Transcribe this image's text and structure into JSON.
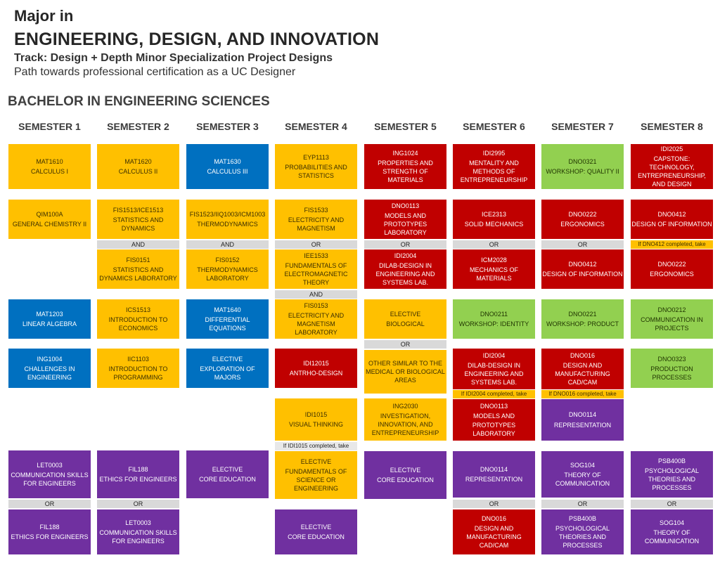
{
  "header": {
    "major": "Major in",
    "program": "ENGINEERING, DESIGN, AND INNOVATION",
    "track": "Track:  Design +  Depth Minor Specialization Project Designs",
    "path": "Path towards professional certification as a UC Designer",
    "degree": "BACHELOR IN ENGINEERING SCIENCES"
  },
  "semesters": [
    "SEMESTER 1",
    "SEMESTER 2",
    "SEMESTER 3",
    "SEMESTER 4",
    "SEMESTER 5",
    "SEMESTER 6",
    "SEMESTER 7",
    "SEMESTER 8"
  ],
  "legend_colors": {
    "science": "#FFC000",
    "design": "#C00000",
    "workshop": "#92D050",
    "math": "#0070C0",
    "general": "#7030A0"
  },
  "connectors": {
    "or": "OR",
    "and": "AND"
  },
  "notes": {
    "n1": "If DNO412 completed, take",
    "n2": "If IDI2004 completed, take",
    "n3": "If DNO016 completed, take",
    "n4": "If IDI1015 completed, take"
  },
  "courses": {
    "s1a": {
      "code": "MAT1610",
      "title": "CALCULUS I"
    },
    "s1b": {
      "code": "QIM100A",
      "title": "GENERAL CHEMISTRY II"
    },
    "s1c": {
      "code": "MAT1203",
      "title": "LINEAR ALGEBRA"
    },
    "s1d": {
      "code": "ING1004",
      "title": "CHALLENGES IN ENGINEERING"
    },
    "s1e": {
      "code": "LET0003",
      "title": "COMMUNICATION SKILLS FOR ENGINEERS"
    },
    "s1f": {
      "code": "FIL188",
      "title": "ETHICS FOR ENGINEERS"
    },
    "s2a": {
      "code": "MAT1620",
      "title": "CALCULUS II"
    },
    "s2b": {
      "code": "FIS1513/ICE1513",
      "title": "STATISTICS AND DYNAMICS"
    },
    "s2c": {
      "code": "FIS0151",
      "title": "STATISTICS AND DYNAMICS LABORATORY"
    },
    "s2d": {
      "code": "ICS1513",
      "title": "INTRODUCTION TO ECONOMICS"
    },
    "s2e": {
      "code": "IIC1103",
      "title": "INTRODUCTION TO PROGRAMMING"
    },
    "s2f": {
      "code": "FIL188",
      "title": "ETHICS FOR ENGINEERS"
    },
    "s2g": {
      "code": "LET0003",
      "title": "COMMUNICATION SKILLS FOR ENGINEERS"
    },
    "s3a": {
      "code": "MAT1630",
      "title": "CALCULUS III"
    },
    "s3b": {
      "code": "FIS1523/IIQ1003/ICM1003",
      "title": "THERMODYNAMICS"
    },
    "s3c": {
      "code": "FIS0152",
      "title": "THERMODYNAMICS LABORATORY"
    },
    "s3d": {
      "code": "MAT1640",
      "title": "DIFFERENTIAL EQUATIONS"
    },
    "s3e": {
      "code": "ELECTIVE",
      "title": "EXPLORATION OF MAJORS"
    },
    "s3f": {
      "code": "ELECTIVE",
      "title": "CORE EDUCATION"
    },
    "s4a": {
      "code": "EYP1113",
      "title": "PROBABILITIES AND STATISTICS"
    },
    "s4b": {
      "code": "FIS1533",
      "title": "ELECTRICITY AND MAGNETISM"
    },
    "s4c": {
      "code": "IEE1533",
      "title": "FUNDAMENTALS OF ELECTROMAGNETIC THEORY"
    },
    "s4d": {
      "code": "FIS0153",
      "title": "ELECTRICITY AND MAGNETISM LABORATORY"
    },
    "s4e": {
      "code": "IDI12015",
      "title": "ANTRHO-DESIGN"
    },
    "s4f": {
      "code": "IDI1015",
      "title": "VISUAL THINKING"
    },
    "s4g": {
      "code": "ELECTIVE",
      "title": "FUNDAMENTALS OF SCIENCE OR ENGINEERING"
    },
    "s4h": {
      "code": "ELECTIVE",
      "title": "CORE EDUCATION"
    },
    "s5a": {
      "code": "ING1024",
      "title": "PROPERTIES AND STRENGTH OF MATERIALS"
    },
    "s5b": {
      "code": "DNO0113",
      "title": "MODELS AND PROTOTYPES LABORATORY"
    },
    "s5c": {
      "code": "IDI2004",
      "title": "DILAB-DESIGN IN ENGINEERING AND SYSTEMS LAB."
    },
    "s5d": {
      "code": "ELECTIVE",
      "title": "BIOLOGICAL"
    },
    "s5e": {
      "code": "",
      "title": "OTHER SIMILAR TO THE MEDICAL OR BIOLOGICAL AREAS"
    },
    "s5f": {
      "code": "ING2030",
      "title": "INVESTIGATION, INNOVATION, AND ENTREPRENEURSHIP"
    },
    "s5g": {
      "code": "ELECTIVE",
      "title": "CORE EDUCATION"
    },
    "s6a": {
      "code": "IDI2995",
      "title": "MENTALITY AND METHODS OF ENTREPRENEURSHIP"
    },
    "s6b": {
      "code": "ICE2313",
      "title": "SOLID MECHANICS"
    },
    "s6c": {
      "code": "ICM2028",
      "title": "MECHANICS OF MATERIALS"
    },
    "s6d": {
      "code": "DNO0211",
      "title": "WORKSHOP: IDENTITY"
    },
    "s6e": {
      "code": "IDI2004",
      "title": "DILAB-DESIGN IN ENGINEERING AND SYSTEMS LAB."
    },
    "s6f": {
      "code": "DNO0113",
      "title": "MODELS AND PROTOTYPES LABORATORY"
    },
    "s6g": {
      "code": "DNO0114",
      "title": "REPRESENTATION"
    },
    "s6h": {
      "code": "DNO016",
      "title": "DESIGN AND MANUFACTURING CAD/CAM"
    },
    "s7a": {
      "code": "DNO0321",
      "title": "WORKSHOP: QUALITY II"
    },
    "s7b": {
      "code": "DNO0222",
      "title": "ERGONOMICS"
    },
    "s7c": {
      "code": "DNO0412",
      "title": "DESIGN OF INFORMATION"
    },
    "s7d": {
      "code": "DNO0221",
      "title": "WORKSHOP: PRODUCT"
    },
    "s7e": {
      "code": "DNO016",
      "title": "DESIGN AND MANUFACTURING CAD/CAM"
    },
    "s7f": {
      "code": "DNO0114",
      "title": "REPRESENTATION"
    },
    "s7g": {
      "code": "SOG104",
      "title": "THEORY OF COMMUNICATION"
    },
    "s7h": {
      "code": "PSB400B",
      "title": "PSYCHOLOGICAL THEORIES AND PROCESSES"
    },
    "s8a": {
      "code": "IDI2025",
      "title": "CAPSTONE: TECHNOLOGY, ENTREPRENEURSHIP, AND DESIGN"
    },
    "s8b": {
      "code": "DNO0412",
      "title": "DESIGN OF INFORMATION"
    },
    "s8c": {
      "code": "DNO0222",
      "title": "ERGONOMICS"
    },
    "s8d": {
      "code": "DNO0212",
      "title": "COMMUNICATION IN PROJECTS"
    },
    "s8e": {
      "code": "DNO0323",
      "title": "PRODUCTION PROCESSES"
    },
    "s8f": {
      "code": "PSB400B",
      "title": "PSYCHOLOGICAL THEORIES AND PROCESSES"
    },
    "s8g": {
      "code": "SOG104",
      "title": "THEORY OF COMMUNICATION"
    }
  }
}
